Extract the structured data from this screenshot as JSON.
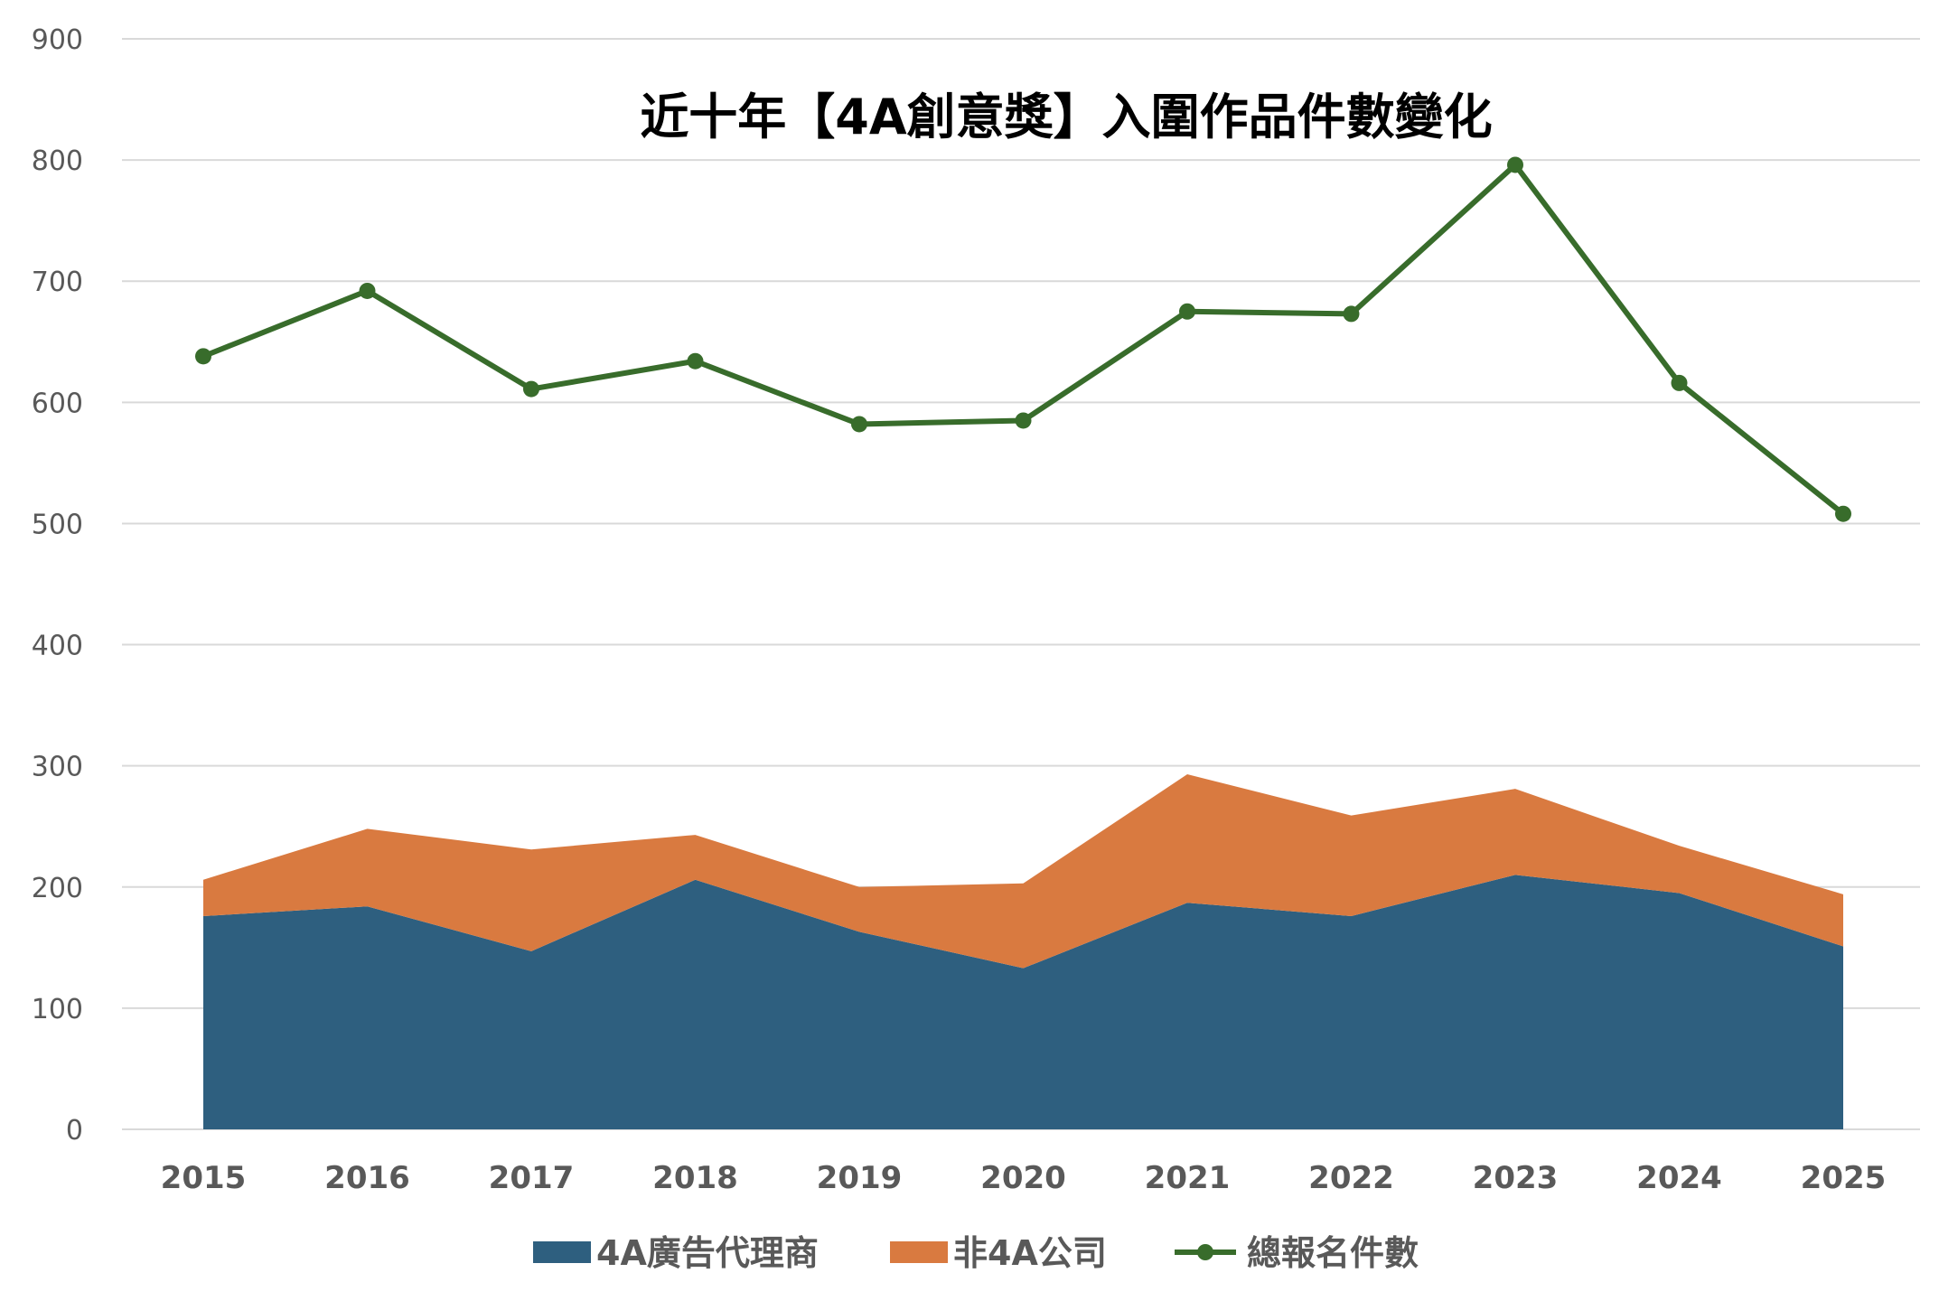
{
  "chart_data": {
    "type": "area",
    "title": "近十年【4A創意獎】入圍作品件數變化",
    "xlabel": "",
    "ylabel": "",
    "ylim": [
      0,
      900
    ],
    "y_ticks": [
      0,
      100,
      200,
      300,
      400,
      500,
      600,
      700,
      800,
      900
    ],
    "categories": [
      "2015",
      "2016",
      "2017",
      "2018",
      "2019",
      "2020",
      "2021",
      "2022",
      "2023",
      "2024",
      "2025"
    ],
    "grid": true,
    "legend_position": "bottom",
    "series": [
      {
        "name": "4A廣告代理商",
        "type": "stacked-area",
        "color": "#2E5F7F",
        "values": [
          176,
          184,
          147,
          206,
          163,
          133,
          187,
          176,
          210,
          195,
          151
        ]
      },
      {
        "name": "非4A公司",
        "type": "stacked-area",
        "color": "#D97A40",
        "values": [
          30,
          64,
          84,
          37,
          37,
          70,
          106,
          83,
          71,
          39,
          43
        ]
      },
      {
        "name": "總報名件數",
        "type": "line",
        "color": "#386C2B",
        "values": [
          638,
          692,
          611,
          634,
          582,
          585,
          675,
          673,
          796,
          616,
          508
        ]
      }
    ]
  }
}
